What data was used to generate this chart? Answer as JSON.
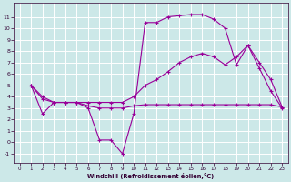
{
  "xlabel": "Windchill (Refroidissement éolien,°C)",
  "bg_color": "#cce8e8",
  "line_color": "#990099",
  "grid_color": "#ffffff",
  "xlim": [
    -0.5,
    23.5
  ],
  "ylim": [
    -1.8,
    12.2
  ],
  "yticks": [
    -1,
    0,
    1,
    2,
    3,
    4,
    5,
    6,
    7,
    8,
    9,
    10,
    11
  ],
  "xticks": [
    0,
    1,
    2,
    3,
    4,
    5,
    6,
    7,
    8,
    9,
    10,
    11,
    12,
    13,
    14,
    15,
    16,
    17,
    18,
    19,
    20,
    21,
    22,
    23
  ],
  "line1_x": [
    1,
    2,
    3,
    4,
    5,
    6,
    7,
    8,
    9,
    10,
    11,
    12,
    13,
    14,
    15,
    16,
    17,
    18,
    19,
    20,
    21,
    22,
    23
  ],
  "line1_y": [
    5.0,
    4.0,
    3.5,
    3.5,
    3.5,
    3.2,
    3.0,
    3.0,
    3.0,
    3.2,
    3.3,
    3.3,
    3.3,
    3.3,
    3.3,
    3.3,
    3.3,
    3.3,
    3.3,
    3.3,
    3.3,
    3.3,
    3.1
  ],
  "line2_x": [
    1,
    2,
    3,
    4,
    5,
    6,
    7,
    8,
    9,
    10,
    11,
    12,
    13,
    14,
    15,
    16,
    17,
    18,
    19,
    20,
    21,
    22,
    23
  ],
  "line2_y": [
    5.0,
    2.5,
    3.5,
    3.5,
    3.5,
    3.0,
    0.2,
    0.2,
    -1.0,
    2.5,
    10.5,
    10.5,
    11.0,
    11.1,
    11.2,
    11.2,
    10.8,
    10.0,
    6.8,
    8.5,
    6.5,
    4.5,
    3.0
  ],
  "line3_x": [
    1,
    2,
    3,
    4,
    5,
    6,
    7,
    8,
    9,
    10,
    11,
    12,
    13,
    14,
    15,
    16,
    17,
    18,
    19,
    20,
    21,
    22,
    23
  ],
  "line3_y": [
    5.0,
    3.8,
    3.5,
    3.5,
    3.5,
    3.5,
    3.5,
    3.5,
    3.5,
    4.0,
    5.0,
    5.5,
    6.2,
    7.0,
    7.5,
    7.8,
    7.5,
    6.8,
    7.5,
    8.5,
    7.0,
    5.5,
    3.1
  ]
}
